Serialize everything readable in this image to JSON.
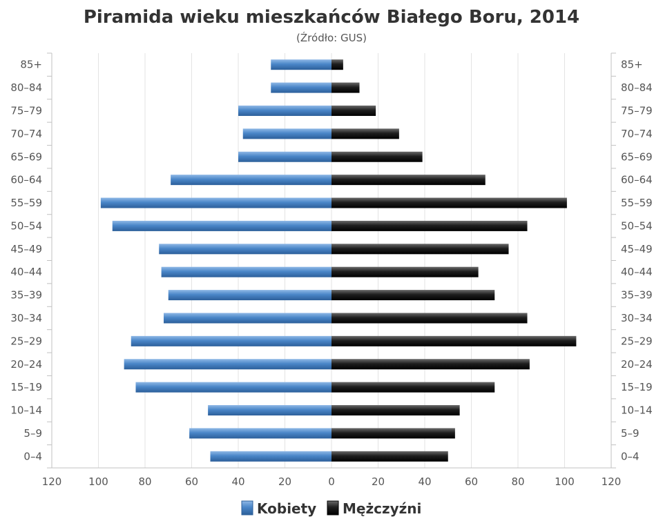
{
  "chart_data": {
    "type": "bar",
    "orientation": "horizontal",
    "title": "Piramida wieku mieszkańców Białego Boru, 2014",
    "subtitle": "(Źródło: GUS)",
    "categories": [
      "85+",
      "80–84",
      "75–79",
      "70–74",
      "65–69",
      "60–64",
      "55–59",
      "50–54",
      "45–49",
      "40–44",
      "35–39",
      "30–34",
      "25–29",
      "20–24",
      "15–19",
      "10–14",
      "5–9",
      "0–4"
    ],
    "series": [
      {
        "name": "Kobiety",
        "color": "#4a86c8",
        "values": [
          26,
          26,
          40,
          38,
          40,
          69,
          99,
          94,
          74,
          73,
          70,
          72,
          86,
          89,
          84,
          53,
          61,
          52
        ]
      },
      {
        "name": "Mężczyźni",
        "color": "#1e1e1e",
        "values": [
          5,
          12,
          19,
          29,
          39,
          66,
          101,
          84,
          76,
          63,
          70,
          84,
          105,
          85,
          70,
          55,
          53,
          50
        ]
      }
    ],
    "xlim": [
      -120,
      120
    ],
    "x_ticks": [
      "120",
      "100",
      "80",
      "60",
      "40",
      "20",
      "0",
      "20",
      "40",
      "60",
      "80",
      "100",
      "120"
    ],
    "grid": true,
    "legend_position": "bottom"
  }
}
